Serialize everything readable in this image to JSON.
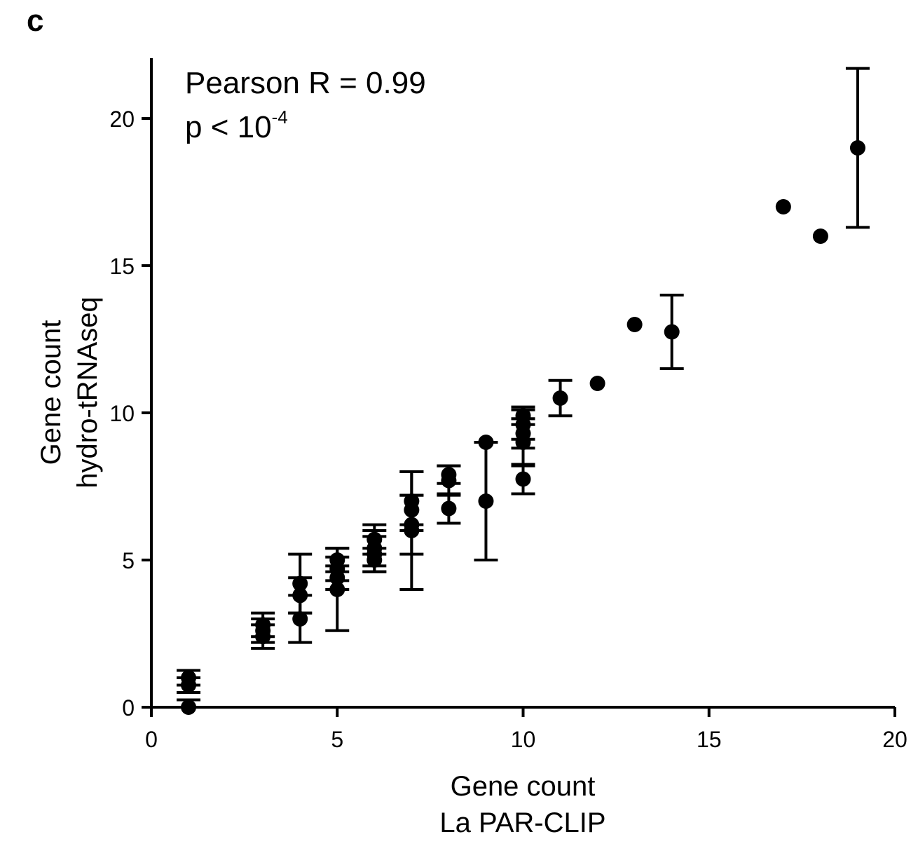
{
  "panel_label": "c",
  "chart_data": {
    "type": "scatter",
    "annotation": {
      "line1": "Pearson R = 0.99",
      "line2_base": "p < 10",
      "line2_sup": "-4"
    },
    "xlabel": [
      "Gene count",
      "La PAR-CLIP"
    ],
    "ylabel": [
      "Gene count",
      "hydro-tRNAseq"
    ],
    "xlim": [
      0,
      20
    ],
    "ylim": [
      0,
      22
    ],
    "xticks": [
      0,
      5,
      10,
      15,
      20
    ],
    "yticks": [
      0,
      5,
      10,
      15,
      20
    ],
    "xtick_labels": [
      "0",
      "5",
      "10",
      "15",
      "20"
    ],
    "ytick_labels": [
      "0",
      "5",
      "10",
      "15",
      "20"
    ],
    "grid": false,
    "marker_color": "#000000",
    "points": [
      {
        "x": 1,
        "y": 1,
        "err": 0.25
      },
      {
        "x": 1,
        "y": 0.75,
        "err": 0.25
      },
      {
        "x": 1,
        "y": 0,
        "err": 0.25
      },
      {
        "x": 3,
        "y": 2.8,
        "err": 0.4
      },
      {
        "x": 3,
        "y": 2.6,
        "err": 0.4
      },
      {
        "x": 3,
        "y": 2.4,
        "err": 0.4
      },
      {
        "x": 4,
        "y": 4.2,
        "err": 1.0
      },
      {
        "x": 4,
        "y": 3.8,
        "err": 0.6
      },
      {
        "x": 4,
        "y": 3.0,
        "err": 0.8
      },
      {
        "x": 5,
        "y": 5.0,
        "err": 0.4
      },
      {
        "x": 5,
        "y": 4.7,
        "err": 0.4
      },
      {
        "x": 5,
        "y": 4.4,
        "err": 0.4
      },
      {
        "x": 5,
        "y": 4.0,
        "err": 1.4
      },
      {
        "x": 6,
        "y": 5.7,
        "err": 0.5
      },
      {
        "x": 6,
        "y": 5.4,
        "err": 0.6
      },
      {
        "x": 6,
        "y": 5.2,
        "err": 0.6
      },
      {
        "x": 6,
        "y": 5.0,
        "err": 0.4
      },
      {
        "x": 7,
        "y": 7.0,
        "err": 1.0
      },
      {
        "x": 7,
        "y": 6.7,
        "err": 0.5
      },
      {
        "x": 7,
        "y": 6.2,
        "err": 1.0
      },
      {
        "x": 7,
        "y": 6.0,
        "err": 2.0
      },
      {
        "x": 8,
        "y": 7.9,
        "err": 0.3
      },
      {
        "x": 8,
        "y": 7.7,
        "err": 0.5
      },
      {
        "x": 8,
        "y": 6.75,
        "err": 0.5
      },
      {
        "x": 9,
        "y": 9.0,
        "err": 0
      },
      {
        "x": 9,
        "y": 7.0,
        "err": 2.0
      },
      {
        "x": 10,
        "y": 9.9,
        "err": 0.3
      },
      {
        "x": 10,
        "y": 9.6,
        "err": 0.5
      },
      {
        "x": 10,
        "y": 9.3,
        "err": 0.5
      },
      {
        "x": 10,
        "y": 9.0,
        "err": 0.8
      },
      {
        "x": 10,
        "y": 7.75,
        "err": 0.5
      },
      {
        "x": 11,
        "y": 10.5,
        "err": 0.6
      },
      {
        "x": 12,
        "y": 11.0,
        "err": 0
      },
      {
        "x": 13,
        "y": 13.0,
        "err": 0
      },
      {
        "x": 14,
        "y": 12.75,
        "err": 1.25
      },
      {
        "x": 17,
        "y": 17.0,
        "err": 0
      },
      {
        "x": 18,
        "y": 16.0,
        "err": 0
      },
      {
        "x": 19,
        "y": 19.0,
        "err": 2.7
      }
    ]
  }
}
